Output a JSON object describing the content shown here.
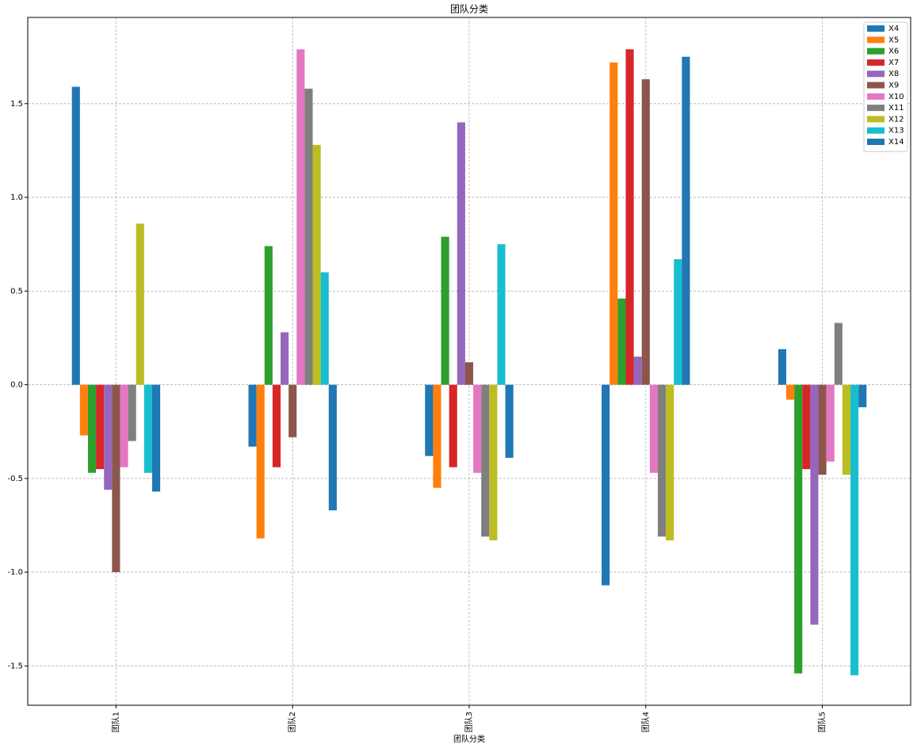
{
  "chart_data": {
    "type": "bar",
    "title": "团队分类",
    "x_label": "团队分类",
    "categories": [
      "团队1",
      "团队2",
      "团队3",
      "团队4",
      "团队5"
    ],
    "series": [
      {
        "name": "X4",
        "color": "#1f77b4",
        "values": [
          1.59,
          -0.33,
          -0.38,
          -1.07,
          0.19
        ]
      },
      {
        "name": "X5",
        "color": "#ff7f0e",
        "values": [
          -0.27,
          -0.82,
          -0.55,
          1.72,
          -0.08
        ]
      },
      {
        "name": "X6",
        "color": "#2ca02c",
        "values": [
          -0.47,
          0.74,
          0.79,
          0.46,
          -1.54
        ]
      },
      {
        "name": "X7",
        "color": "#d62728",
        "values": [
          -0.45,
          -0.44,
          -0.44,
          1.79,
          -0.45
        ]
      },
      {
        "name": "X8",
        "color": "#9467bd",
        "values": [
          -0.56,
          0.28,
          1.4,
          0.15,
          -1.28
        ]
      },
      {
        "name": "X9",
        "color": "#8c564b",
        "values": [
          -1.0,
          -0.28,
          0.12,
          1.63,
          -0.48
        ]
      },
      {
        "name": "X10",
        "color": "#e377c2",
        "values": [
          -0.44,
          1.79,
          -0.47,
          -0.47,
          -0.41
        ]
      },
      {
        "name": "X11",
        "color": "#7f7f7f",
        "values": [
          -0.3,
          1.58,
          -0.81,
          -0.81,
          0.33
        ]
      },
      {
        "name": "X12",
        "color": "#bcbd22",
        "values": [
          0.86,
          1.28,
          -0.83,
          -0.83,
          -0.48
        ]
      },
      {
        "name": "X13",
        "color": "#17becf",
        "values": [
          -0.47,
          0.6,
          0.75,
          0.67,
          -1.55
        ]
      },
      {
        "name": "X14",
        "color": "#1f77b4",
        "values": [
          -0.57,
          -0.67,
          -0.39,
          1.75,
          -0.12
        ]
      }
    ],
    "ylim": [
      -1.71,
      1.96
    ],
    "yticks": [
      -1.5,
      {
        "value": -1,
        "label": "-1.0"
      },
      -0.5,
      {
        "value": 0,
        "label": "0.0"
      },
      0.5,
      {
        "value": 1,
        "label": "1.0"
      },
      1.5
    ],
    "grid": true,
    "legend": "upper right"
  }
}
